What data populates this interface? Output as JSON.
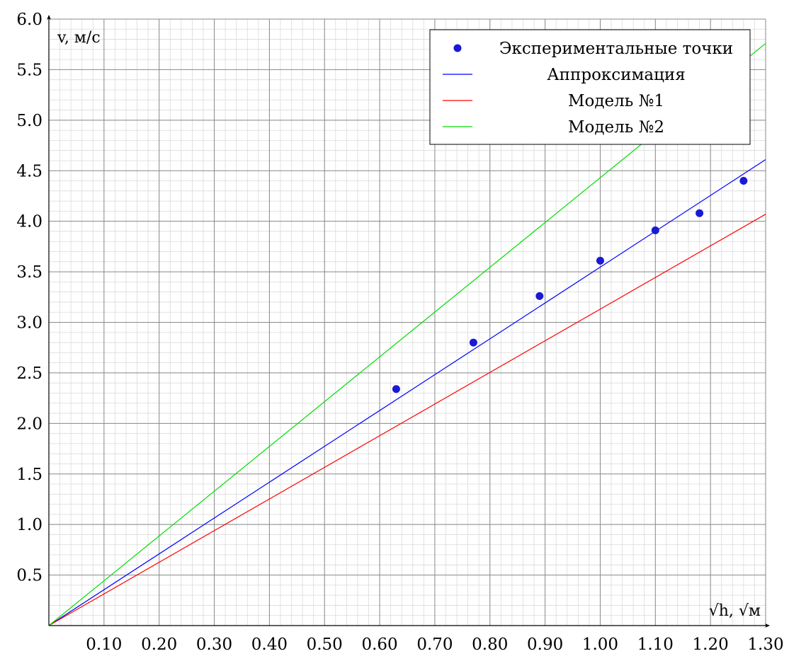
{
  "chart_data": {
    "type": "line",
    "xlabel": "√h, √м",
    "ylabel": "v, м/с",
    "xlim": [
      0,
      1.3
    ],
    "ylim": [
      0,
      6.0
    ],
    "x_ticks": [
      0.1,
      0.2,
      0.3,
      0.4,
      0.5,
      0.6,
      0.7,
      0.8,
      0.9,
      1.0,
      1.1,
      1.2,
      1.3
    ],
    "x_tick_labels": [
      "0.10",
      "0.20",
      "0.30",
      "0.40",
      "0.50",
      "0.60",
      "0.70",
      "0.80",
      "0.90",
      "1.00",
      "1.10",
      "1.20",
      "1.30"
    ],
    "y_ticks": [
      0.5,
      1.0,
      1.5,
      2.0,
      2.5,
      3.0,
      3.5,
      4.0,
      4.5,
      5.0,
      5.5,
      6.0
    ],
    "y_tick_labels": [
      "0.5",
      "1.0",
      "1.5",
      "2.0",
      "2.5",
      "3.0",
      "3.5",
      "4.0",
      "4.5",
      "5.0",
      "5.5",
      "6.0"
    ],
    "grid": true,
    "legend_position": "top-right",
    "series": [
      {
        "name": "Экспериментальные точки",
        "kind": "scatter",
        "color": "#1a1ad4",
        "x": [
          0.63,
          0.77,
          0.89,
          1.0,
          1.1,
          1.18,
          1.26
        ],
        "y": [
          2.34,
          2.8,
          3.26,
          3.61,
          3.91,
          4.08,
          4.4
        ]
      },
      {
        "name": "Аппроксимация",
        "kind": "line",
        "color": "#0000ff",
        "x": [
          0,
          1.3
        ],
        "y": [
          0,
          4.61
        ]
      },
      {
        "name": "Модель №1",
        "kind": "line",
        "color": "#ff0000",
        "x": [
          0,
          1.3
        ],
        "y": [
          0,
          4.07
        ]
      },
      {
        "name": "Модель №2",
        "kind": "line",
        "color": "#00dd00",
        "x": [
          0,
          1.3
        ],
        "y": [
          0,
          5.76
        ]
      }
    ]
  }
}
